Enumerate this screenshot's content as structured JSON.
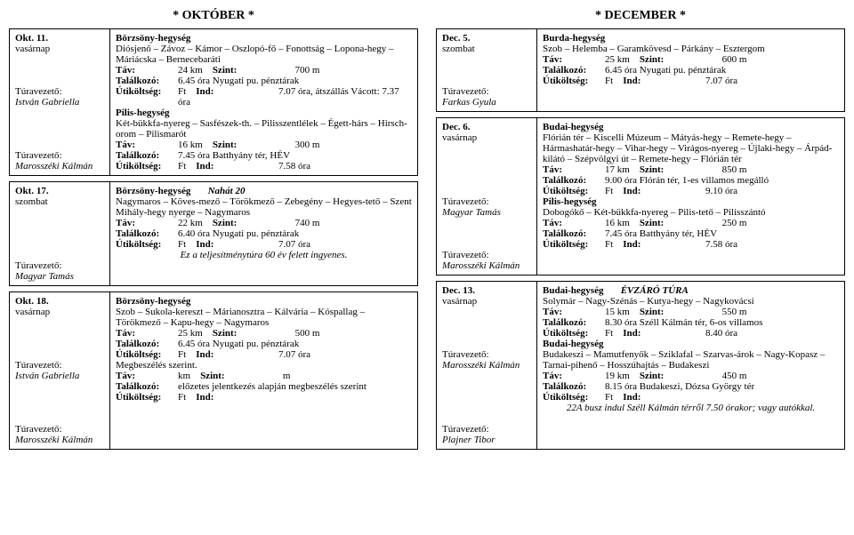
{
  "month_left": "* OKTÓBER *",
  "month_right": "* DECEMBER *",
  "left": [
    {
      "date": "Okt. 11.",
      "day": "vasárnap",
      "leaders": [
        "",
        "",
        "",
        "Túravezető:",
        "István Gabriella",
        "",
        "",
        "",
        "",
        "Túravezető:",
        "Marosszéki Kálmán"
      ],
      "blocks": [
        {
          "region": "Börzsöny-hegység",
          "route": "Diósjenő – Závoz – Kámor – Oszlopó-fő – Fonottság – Lopona-hegy – Máriácska – Bernecebaráti",
          "tav": "24 km",
          "szint": "700 m",
          "talalkozo": "6.45 óra Nyugati pu. pénztárak",
          "utikoltseg": "Ft",
          "ind": "7.07 óra, átszállás Vácott: 7.37 óra"
        },
        {
          "region": "Pilis-hegység",
          "route": "Két-bükkfa-nyereg – Sasfészek-th. – Pilisszentlélek – Égett-hárs – Hirsch-orom – Pilismarót",
          "tav": "16 km",
          "szint": "300 m",
          "talalkozo": "7.45 óra Batthyány tér, HÉV",
          "utikoltseg": "Ft",
          "ind": "7.58 óra"
        }
      ]
    },
    {
      "date": "Okt. 17.",
      "day": "szombat",
      "leaders": [
        "",
        "",
        "",
        "",
        "",
        "Túravezető:",
        "Magyar Tamás"
      ],
      "blocks": [
        {
          "region": "Börzsöny-hegység",
          "region_extra": "Nahát 20",
          "route": "Nagymaros – Köves-mező – Törökmező – Zebegény – Hegyes-tető – Szent Mihály-hegy nyerge – Nagymaros",
          "tav": "22 km",
          "szint": "740 m",
          "talalkozo": "6.40 óra Nyugati pu. pénztárak",
          "utikoltseg": "Ft",
          "ind": "7.07 óra",
          "note": "Ez a teljesítménytúra 60 év felett ingyenes."
        }
      ]
    },
    {
      "date": "Okt. 18.",
      "day": "vasárnap",
      "leaders": [
        "",
        "",
        "",
        "",
        "Túravezető:",
        "István Gabriella",
        "",
        "",
        "",
        "",
        "Túravezető:",
        "Marosszéki Kálmán"
      ],
      "blocks": [
        {
          "region": "Börzsöny-hegység",
          "route": "Szob – Sukola-kereszt – Márianosztra – Kálvária – Kóspallag – Törökmező – Kapu-hegy – Nagymaros",
          "tav": "25 km",
          "szint": "500 m",
          "talalkozo": "6.45 óra Nyugati pu. pénztárak",
          "utikoltseg": "Ft",
          "ind": "7.07 óra"
        },
        {
          "region": "",
          "route": "Megbeszélés szerint.",
          "tav": "km",
          "szint": "m",
          "talalkozo": "előzetes jelentkezés alapján megbeszélés szerint",
          "utikoltseg": "Ft",
          "ind": ""
        }
      ]
    }
  ],
  "right": [
    {
      "date": "Dec. 5.",
      "day": "szombat",
      "leaders": [
        "",
        "",
        "",
        "Túravezető:",
        "Farkas Gyula"
      ],
      "blocks": [
        {
          "region": "Burda-hegység",
          "route": "Szob – Helemba – Garamkövesd – Párkány – Esztergom",
          "tav": "25 km",
          "szint": "600 m",
          "talalkozo": "6.45 óra Nyugati pu. pénztárak",
          "utikoltseg": "Ft",
          "ind": "7.07 óra"
        }
      ]
    },
    {
      "date": "Dec. 6.",
      "day": "vasárnap",
      "leaders": [
        "",
        "",
        "",
        "",
        "",
        "Túravezető:",
        "Magyar Tamás",
        "",
        "",
        "",
        "Túravezető:",
        "Marosszéki Kálmán"
      ],
      "blocks": [
        {
          "region": "Budai-hegység",
          "route": "Flórián tér – Kiscelli Múzeum – Mátyás-hegy – Remete-hegy – Hármashatár-hegy – Vihar-hegy – Virágos-nyereg – Újlaki-hegy – Árpád-kilátó – Szépvölgyi út – Remete-hegy – Flórián tér",
          "tav": "17 km",
          "szint": "850 m",
          "talalkozo": "9.00 óra Flórán tér, 1-es villamos megálló",
          "utikoltseg": "Ft",
          "ind": "9.10 óra"
        },
        {
          "region": "Pilis-hegység",
          "route": "Dobogókő – Két-bükkfa-nyereg – Pilis-tető – Pilisszántó",
          "tav": "16 km",
          "szint": "250 m",
          "talalkozo": "7.45 óra Batthyány tér, HÉV",
          "utikoltseg": "Ft",
          "ind": "7.58 óra"
        }
      ]
    },
    {
      "date": "Dec. 13.",
      "day": "vasárnap",
      "leaders": [
        "",
        "",
        "",
        "",
        "Túravezető:",
        "Marosszéki Kálmán",
        "",
        "",
        "",
        "",
        "",
        "Túravezető:",
        "Plajner Tibor"
      ],
      "blocks": [
        {
          "region": "Budai-hegység",
          "region_extra": "ÉVZÁRÓ TÚRA",
          "route": "Solymár – Nagy-Szénás – Kutya-hegy – Nagykovácsi",
          "tav": "15 km",
          "szint": "550 m",
          "talalkozo": "8.30 óra Széll Kálmán tér, 6-os villamos",
          "utikoltseg": "Ft",
          "ind": "8.40 óra"
        },
        {
          "region": "Budai-hegység",
          "route": "Budakeszi – Mamutfenyők – Sziklafal – Szarvas-árok – Nagy-Kopasz – Tarnai-pihenő – Hosszúhajtás – Budakeszi",
          "tav": "19 km",
          "szint": "450 m",
          "talalkozo": "8.15 óra Budakeszi, Dózsa György tér",
          "utikoltseg": "Ft",
          "ind": "",
          "note": "22A busz indul Széll Kálmán térről 7.50 órakor; vagy autókkal."
        }
      ]
    }
  ],
  "labels": {
    "tav": "Táv:",
    "szint": "Szint:",
    "talalkozo": "Találkozó:",
    "utikoltseg": "Útiköltség:",
    "ind": "Ind:"
  }
}
